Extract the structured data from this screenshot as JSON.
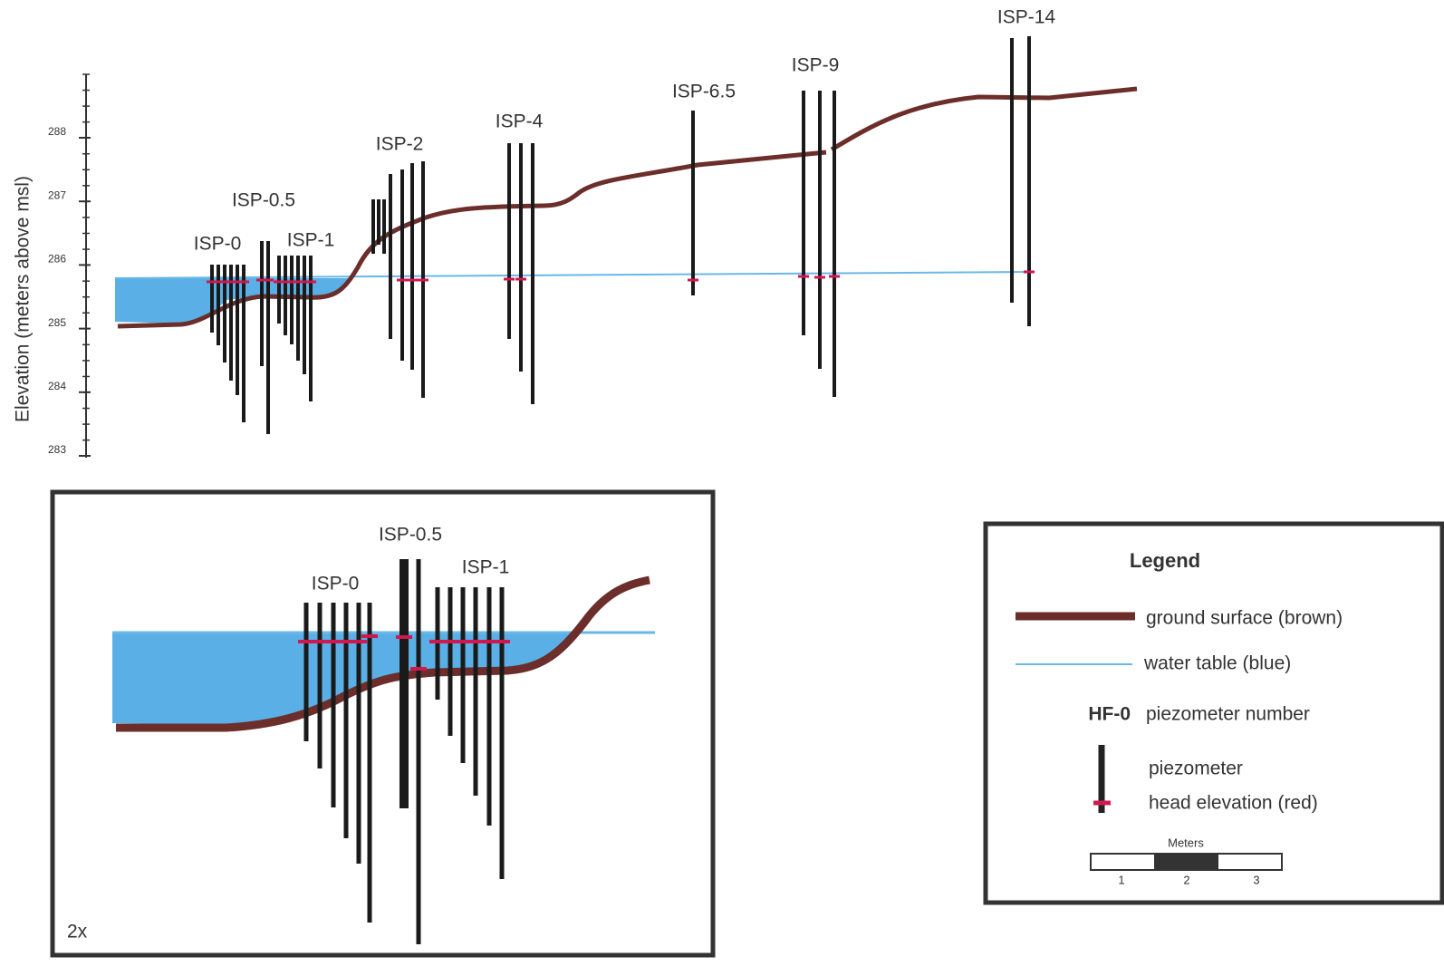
{
  "axis": {
    "label": "Elevation (meters above msl)",
    "ticks": [
      288,
      287,
      286,
      285,
      284,
      283
    ]
  },
  "profile_labels": [
    "ISP-0",
    "ISP-0.5",
    "ISP-1",
    "ISP-2",
    "ISP-4",
    "ISP-6.5",
    "ISP-9",
    "ISP-14"
  ],
  "inset": {
    "labels": [
      "ISP-0",
      "ISP-0.5",
      "ISP-1"
    ],
    "scale": "2x"
  },
  "legend": {
    "title": "Legend",
    "ground": "ground surface (brown)",
    "water": "water table (blue)",
    "sample_number": "HF-0",
    "number": "piezometer number",
    "piezometer": "piezometer",
    "head": "head elevation (red)",
    "scale_title": "Meters",
    "scale_ticks": [
      "1",
      "2",
      "3"
    ]
  }
}
